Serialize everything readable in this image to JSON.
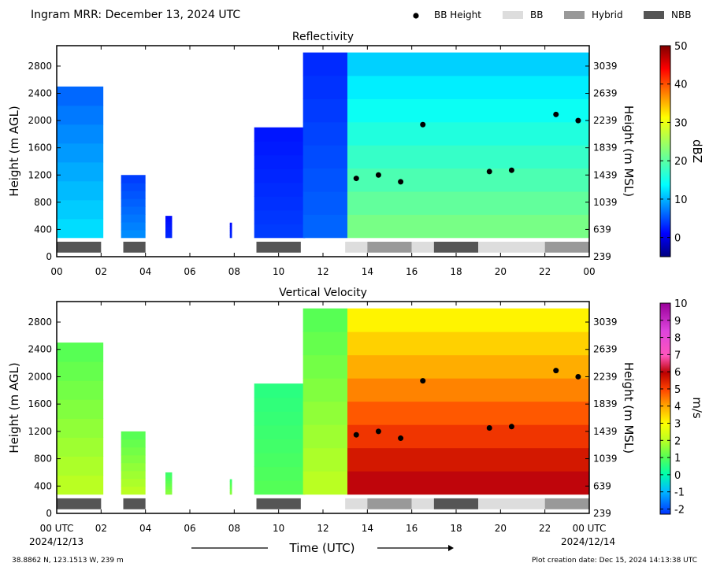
{
  "header": {
    "title": "Ingram MRR:  December 13, 2024 UTC",
    "legend": [
      {
        "label": "BB Height",
        "kind": "dot",
        "color": "#000000"
      },
      {
        "label": "BB",
        "kind": "box",
        "color": "#dddddd"
      },
      {
        "label": "Hybrid",
        "kind": "box",
        "color": "#999999"
      },
      {
        "label": "NBB",
        "kind": "box",
        "color": "#555555"
      }
    ]
  },
  "footer": {
    "xlabel": "Time (UTC)",
    "start_date": "2024/12/13",
    "end_date": "2024/12/14",
    "location": "38.8862 N, 123.1513 W, 239 m",
    "creation": "Plot creation date: Dec 15, 2024 14:13:38 UTC"
  },
  "chart_data": [
    {
      "type": "heatmap",
      "title": "Reflectivity",
      "ylabel_left": "Height (m AGL)",
      "ylabel_right": "Height (m MSL)",
      "xlim": [
        0,
        24
      ],
      "ylim": [
        0,
        3100
      ],
      "x_ticks": [
        "00",
        "02",
        "04",
        "06",
        "08",
        "10",
        "12",
        "14",
        "16",
        "18",
        "20",
        "22",
        "00"
      ],
      "y_ticks_left": [
        0,
        400,
        800,
        1200,
        1600,
        2000,
        2400,
        2800
      ],
      "y_ticks_right": [
        239,
        639,
        1039,
        1439,
        1839,
        2239,
        2639,
        3039
      ],
      "colorbar": {
        "label": "dBZ",
        "min": -5,
        "max": 50,
        "ticks": [
          0,
          10,
          20,
          30,
          40,
          50
        ],
        "scheme": "jet"
      },
      "bb_height": [
        [
          13.5,
          1150
        ],
        [
          14.5,
          1200
        ],
        [
          15.5,
          1100
        ],
        [
          16.5,
          1940
        ],
        [
          19.5,
          1250
        ],
        [
          20.5,
          1270
        ],
        [
          22.5,
          2090
        ],
        [
          23.5,
          2000
        ]
      ],
      "bb_type_segments": [
        {
          "start": 0,
          "end": 2,
          "type": "NBB"
        },
        {
          "start": 3,
          "end": 4,
          "type": "NBB"
        },
        {
          "start": 9,
          "end": 11,
          "type": "NBB"
        },
        {
          "start": 13,
          "end": 14,
          "type": "BB"
        },
        {
          "start": 14,
          "end": 16,
          "type": "Hybrid"
        },
        {
          "start": 16,
          "end": 17,
          "type": "BB"
        },
        {
          "start": 17,
          "end": 19,
          "type": "NBB"
        },
        {
          "start": 19,
          "end": 22,
          "type": "BB"
        },
        {
          "start": 22,
          "end": 24,
          "type": "Hybrid"
        }
      ],
      "echo_regions": [
        {
          "start": 0,
          "end": 2.1,
          "top": 2500,
          "level": 12
        },
        {
          "start": 2.9,
          "end": 4,
          "top": 1200,
          "level": 8
        },
        {
          "start": 4.9,
          "end": 5.2,
          "top": 600,
          "level": 3
        },
        {
          "start": 7.8,
          "end": 7.9,
          "top": 500,
          "level": 3
        },
        {
          "start": 8.9,
          "end": 11.2,
          "top": 1900,
          "level": 4
        },
        {
          "start": 11.1,
          "end": 13.1,
          "top": 3000,
          "level": 6
        },
        {
          "start": 13.1,
          "end": 24,
          "top": 3000,
          "level": 22
        }
      ]
    },
    {
      "type": "heatmap",
      "title": "Vertical Velocity",
      "ylabel_left": "Height (m AGL)",
      "ylabel_right": "Height (m MSL)",
      "xlim": [
        0,
        24
      ],
      "ylim": [
        0,
        3100
      ],
      "x_ticks": [
        "00 UTC",
        "02",
        "04",
        "06",
        "08",
        "10",
        "12",
        "14",
        "16",
        "18",
        "20",
        "22",
        "00 UTC"
      ],
      "y_ticks_left": [
        0,
        400,
        800,
        1200,
        1600,
        2000,
        2400,
        2800
      ],
      "y_ticks_right": [
        239,
        639,
        1039,
        1439,
        1839,
        2239,
        2639,
        3039
      ],
      "colorbar": {
        "label": "m/s",
        "min": -2.3,
        "max": 10,
        "ticks": [
          -2,
          -1,
          0,
          1,
          2,
          3,
          4,
          5,
          6,
          7,
          8,
          9,
          10
        ],
        "scheme": "velocity"
      },
      "bb_height": [
        [
          13.5,
          1150
        ],
        [
          14.5,
          1200
        ],
        [
          15.5,
          1100
        ],
        [
          16.5,
          1940
        ],
        [
          19.5,
          1250
        ],
        [
          20.5,
          1270
        ],
        [
          22.5,
          2090
        ],
        [
          23.5,
          2000
        ]
      ],
      "bb_type_segments": [
        {
          "start": 0,
          "end": 2,
          "type": "NBB"
        },
        {
          "start": 3,
          "end": 4,
          "type": "NBB"
        },
        {
          "start": 9,
          "end": 11,
          "type": "NBB"
        },
        {
          "start": 13,
          "end": 14,
          "type": "BB"
        },
        {
          "start": 14,
          "end": 16,
          "type": "Hybrid"
        },
        {
          "start": 16,
          "end": 17,
          "type": "BB"
        },
        {
          "start": 17,
          "end": 19,
          "type": "NBB"
        },
        {
          "start": 19,
          "end": 22,
          "type": "BB"
        },
        {
          "start": 22,
          "end": 24,
          "type": "Hybrid"
        }
      ],
      "echo_regions": [
        {
          "start": 0,
          "end": 2.1,
          "top": 2500,
          "level": 2
        },
        {
          "start": 2.9,
          "end": 4,
          "top": 1200,
          "level": 2
        },
        {
          "start": 4.9,
          "end": 5.2,
          "top": 600,
          "level": 1.5
        },
        {
          "start": 7.8,
          "end": 7.9,
          "top": 500,
          "level": 1.5
        },
        {
          "start": 8.9,
          "end": 11.2,
          "top": 1900,
          "level": 1
        },
        {
          "start": 11.1,
          "end": 13.1,
          "top": 3000,
          "level": 2
        },
        {
          "start": 13.1,
          "end": 24,
          "top": 3000,
          "level": 6
        }
      ]
    }
  ]
}
